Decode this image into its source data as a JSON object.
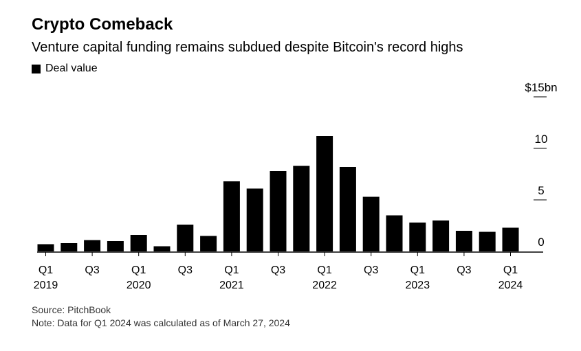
{
  "title": "Crypto Comeback",
  "subtitle": "Venture capital funding remains subdued despite Bitcoin's record highs",
  "legend": {
    "label": "Deal value"
  },
  "footer": {
    "source": "Source: PitchBook",
    "note": "Note: Data for Q1 2024 was calculated as of March 27, 2024"
  },
  "colors": {
    "bar": "#000000",
    "axis": "#000000",
    "text": "#000000"
  },
  "chart_data": {
    "type": "bar",
    "title": "Crypto Comeback",
    "series": [
      {
        "name": "Deal value",
        "values": [
          0.7,
          0.8,
          1.1,
          1.0,
          1.6,
          0.5,
          2.6,
          1.5,
          6.8,
          6.1,
          7.8,
          8.3,
          11.2,
          8.2,
          5.3,
          3.5,
          2.8,
          3.0,
          2.0,
          1.9,
          2.3
        ]
      }
    ],
    "categories": [
      "Q1 2019",
      "Q2 2019",
      "Q3 2019",
      "Q4 2019",
      "Q1 2020",
      "Q2 2020",
      "Q3 2020",
      "Q4 2020",
      "Q1 2021",
      "Q2 2021",
      "Q3 2021",
      "Q4 2021",
      "Q1 2022",
      "Q2 2022",
      "Q3 2022",
      "Q4 2022",
      "Q1 2023",
      "Q2 2023",
      "Q3 2023",
      "Q4 2023",
      "Q1 2024"
    ],
    "x_tick_labels": [
      {
        "index": 0,
        "quarter": "Q1",
        "year": "2019"
      },
      {
        "index": 2,
        "quarter": "Q3",
        "year": ""
      },
      {
        "index": 4,
        "quarter": "Q1",
        "year": "2020"
      },
      {
        "index": 6,
        "quarter": "Q3",
        "year": ""
      },
      {
        "index": 8,
        "quarter": "Q1",
        "year": "2021"
      },
      {
        "index": 10,
        "quarter": "Q3",
        "year": ""
      },
      {
        "index": 12,
        "quarter": "Q1",
        "year": "2022"
      },
      {
        "index": 14,
        "quarter": "Q3",
        "year": ""
      },
      {
        "index": 16,
        "quarter": "Q1",
        "year": "2023"
      },
      {
        "index": 18,
        "quarter": "Q3",
        "year": ""
      },
      {
        "index": 20,
        "quarter": "Q1",
        "year": "2024"
      }
    ],
    "y_ticks": [
      {
        "value": 0,
        "label": "0"
      },
      {
        "value": 5,
        "label": "5"
      },
      {
        "value": 10,
        "label": "10"
      },
      {
        "value": 15,
        "label": "$15bn"
      }
    ],
    "ylim": [
      0,
      15
    ],
    "xlabel": "",
    "ylabel": "",
    "grid": false,
    "legend_position": "top-left"
  }
}
